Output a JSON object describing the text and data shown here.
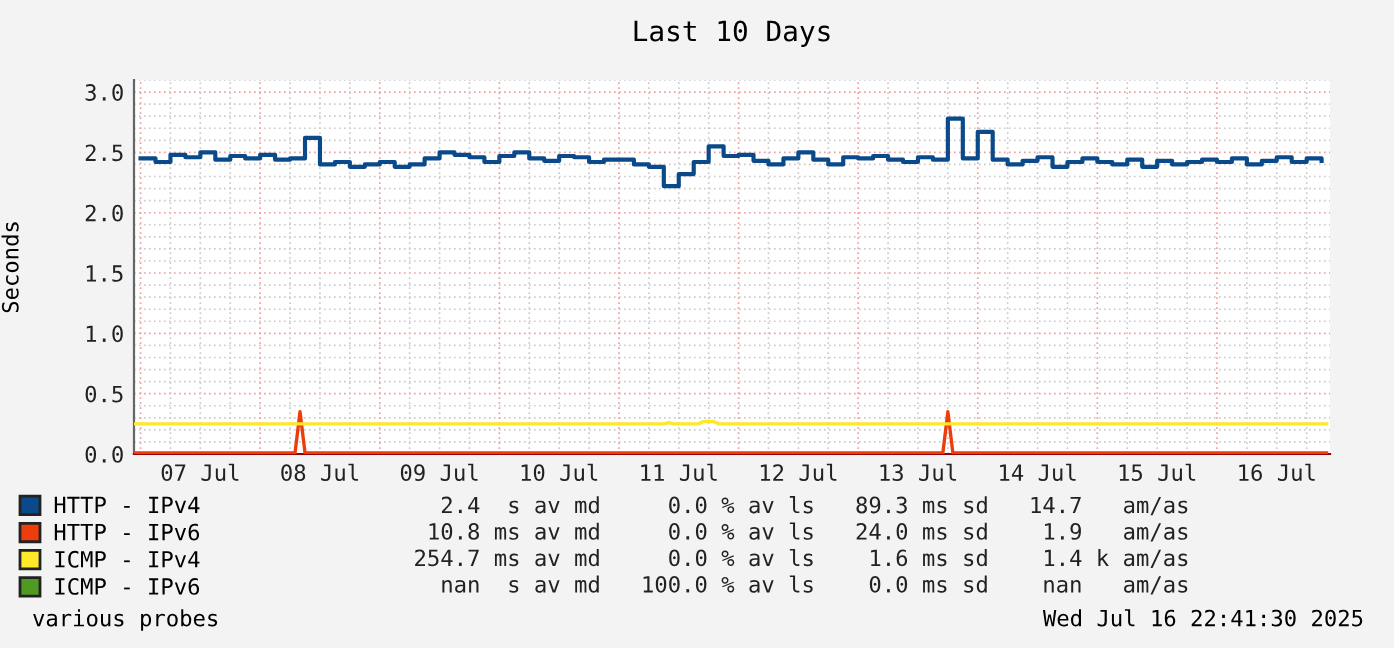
{
  "chart_data": {
    "type": "line",
    "title": "Last 10 Days",
    "ylabel": "Seconds",
    "xlim": [
      "2025-07-06T22:41",
      "2025-07-16T22:41"
    ],
    "ylim": [
      0,
      3.1
    ],
    "xticks": [
      {
        "value": "2025-07-07T12:00",
        "label": "07 Jul"
      },
      {
        "value": "2025-07-08T12:00",
        "label": "08 Jul"
      },
      {
        "value": "2025-07-09T12:00",
        "label": "09 Jul"
      },
      {
        "value": "2025-07-10T12:00",
        "label": "10 Jul"
      },
      {
        "value": "2025-07-11T12:00",
        "label": "11 Jul"
      },
      {
        "value": "2025-07-12T12:00",
        "label": "12 Jul"
      },
      {
        "value": "2025-07-13T12:00",
        "label": "13 Jul"
      },
      {
        "value": "2025-07-14T12:00",
        "label": "14 Jul"
      },
      {
        "value": "2025-07-15T12:00",
        "label": "15 Jul"
      },
      {
        "value": "2025-07-16T12:00",
        "label": "16 Jul"
      }
    ],
    "yticks": [
      {
        "value": 0,
        "label": "0.0"
      },
      {
        "value": 0.5,
        "label": "0.5"
      },
      {
        "value": 1,
        "label": "1.0"
      },
      {
        "value": 1.5,
        "label": "1.5"
      },
      {
        "value": 2,
        "label": "2.0"
      },
      {
        "value": 2.5,
        "label": "2.5"
      },
      {
        "value": 3,
        "label": "3.0"
      }
    ],
    "grid": true,
    "legend": "bottom",
    "marker": "none",
    "line_style": "solid",
    "series": [
      {
        "name": "HTTP - IPv4",
        "color": "#0b4a8a",
        "type": "step",
        "x": [
          "2025-07-07T00:00",
          "2025-07-07T03:00",
          "2025-07-07T06:00",
          "2025-07-07T09:00",
          "2025-07-07T12:00",
          "2025-07-07T15:00",
          "2025-07-07T18:00",
          "2025-07-07T21:00",
          "2025-07-08T00:00",
          "2025-07-08T03:00",
          "2025-07-08T06:00",
          "2025-07-08T09:00",
          "2025-07-08T12:00",
          "2025-07-08T15:00",
          "2025-07-08T18:00",
          "2025-07-08T21:00",
          "2025-07-09T00:00",
          "2025-07-09T03:00",
          "2025-07-09T06:00",
          "2025-07-09T09:00",
          "2025-07-09T12:00",
          "2025-07-09T15:00",
          "2025-07-09T18:00",
          "2025-07-09T21:00",
          "2025-07-10T00:00",
          "2025-07-10T03:00",
          "2025-07-10T06:00",
          "2025-07-10T09:00",
          "2025-07-10T12:00",
          "2025-07-10T15:00",
          "2025-07-10T18:00",
          "2025-07-10T21:00",
          "2025-07-11T00:00",
          "2025-07-11T03:00",
          "2025-07-11T06:00",
          "2025-07-11T09:00",
          "2025-07-11T12:00",
          "2025-07-11T15:00",
          "2025-07-11T18:00",
          "2025-07-11T21:00",
          "2025-07-12T00:00",
          "2025-07-12T03:00",
          "2025-07-12T06:00",
          "2025-07-12T09:00",
          "2025-07-12T12:00",
          "2025-07-12T15:00",
          "2025-07-12T18:00",
          "2025-07-12T21:00",
          "2025-07-13T00:00",
          "2025-07-13T03:00",
          "2025-07-13T06:00",
          "2025-07-13T09:00",
          "2025-07-13T12:00",
          "2025-07-13T15:00",
          "2025-07-13T18:00",
          "2025-07-13T21:00",
          "2025-07-14T00:00",
          "2025-07-14T03:00",
          "2025-07-14T06:00",
          "2025-07-14T09:00",
          "2025-07-14T12:00",
          "2025-07-14T15:00",
          "2025-07-14T18:00",
          "2025-07-14T21:00",
          "2025-07-15T00:00",
          "2025-07-15T03:00",
          "2025-07-15T06:00",
          "2025-07-15T09:00",
          "2025-07-15T12:00",
          "2025-07-15T15:00",
          "2025-07-15T18:00",
          "2025-07-15T21:00",
          "2025-07-16T00:00",
          "2025-07-16T03:00",
          "2025-07-16T06:00",
          "2025-07-16T09:00",
          "2025-07-16T12:00",
          "2025-07-16T15:00",
          "2025-07-16T18:00",
          "2025-07-16T21:00"
        ],
        "values": [
          2.45,
          2.42,
          2.48,
          2.46,
          2.5,
          2.44,
          2.47,
          2.45,
          2.48,
          2.44,
          2.45,
          2.62,
          2.4,
          2.42,
          2.38,
          2.4,
          2.42,
          2.38,
          2.4,
          2.45,
          2.5,
          2.48,
          2.46,
          2.42,
          2.47,
          2.5,
          2.45,
          2.43,
          2.47,
          2.46,
          2.42,
          2.44,
          2.44,
          2.4,
          2.38,
          2.22,
          2.32,
          2.42,
          2.55,
          2.47,
          2.48,
          2.43,
          2.4,
          2.45,
          2.5,
          2.44,
          2.4,
          2.46,
          2.45,
          2.47,
          2.44,
          2.42,
          2.46,
          2.44,
          2.78,
          2.45,
          2.67,
          2.44,
          2.4,
          2.43,
          2.46,
          2.38,
          2.42,
          2.45,
          2.42,
          2.4,
          2.44,
          2.38,
          2.43,
          2.4,
          2.42,
          2.44,
          2.42,
          2.45,
          2.4,
          2.43,
          2.46,
          2.42,
          2.45,
          2.43
        ]
      },
      {
        "name": "HTTP - IPv6",
        "color": "#ee3d0c",
        "x": [
          "2025-07-06T23:00",
          "2025-07-08T07:00",
          "2025-07-08T08:00",
          "2025-07-08T09:00",
          "2025-07-13T17:00",
          "2025-07-13T18:00",
          "2025-07-13T19:00",
          "2025-07-16T22:00"
        ],
        "values": [
          0.01,
          0.01,
          0.35,
          0.01,
          0.01,
          0.35,
          0.01,
          0.01
        ]
      },
      {
        "name": "ICMP - IPv4",
        "color": "#fde82a",
        "x": [
          "2025-07-06T23:00",
          "2025-07-11T09:00",
          "2025-07-11T10:00",
          "2025-07-11T11:00",
          "2025-07-11T16:00",
          "2025-07-11T17:00",
          "2025-07-11T19:00",
          "2025-07-11T20:00",
          "2025-07-16T22:00"
        ],
        "values": [
          0.25,
          0.25,
          0.26,
          0.25,
          0.25,
          0.27,
          0.27,
          0.25,
          0.25
        ]
      },
      {
        "name": "ICMP - IPv6",
        "color": "#4f9a22"
      }
    ],
    "annotations": [
      "      2.4  s av md     0.0 % av ls   89.3 ms sd   14.7   am/as",
      "     10.8 ms av md     0.0 % av ls   24.0 ms sd    1.9   am/as",
      "    254.7 ms av md     0.0 % av ls    1.6 ms sd    1.4 k am/as",
      "      nan  s av md   100.0 % av ls    0.0 ms sd    nan   am/as",
      "various probes",
      "Wed Jul 16 22:41:30 2025"
    ]
  }
}
